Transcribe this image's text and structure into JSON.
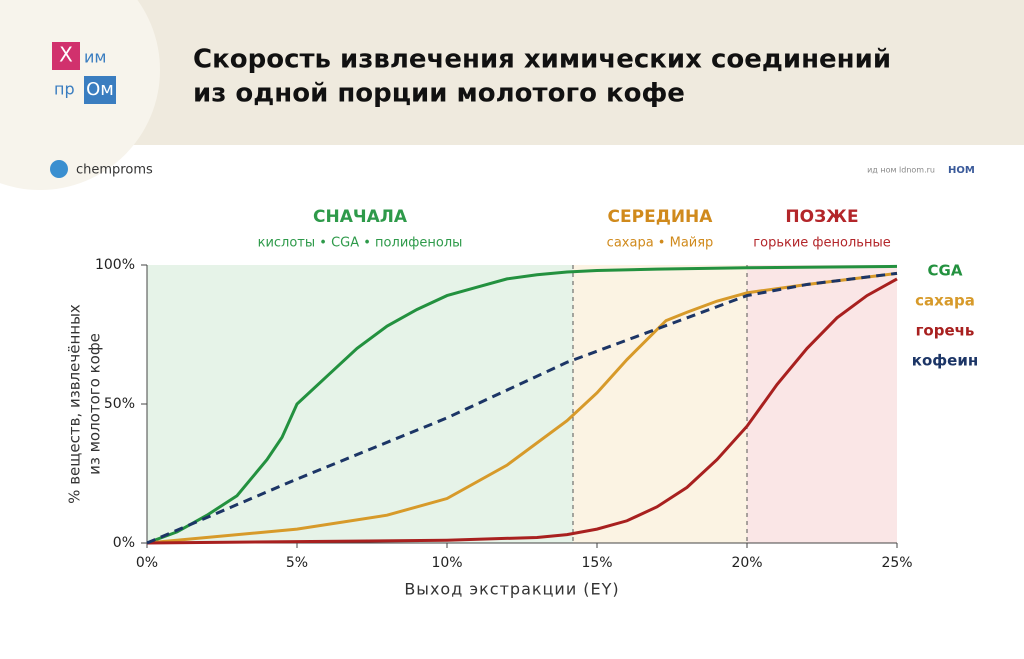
{
  "header": {
    "logo": [
      "Х",
      "им",
      "пр",
      "Ом"
    ],
    "title_lines": [
      "Скорость извлечения химических соединений",
      "из одной порции молотого кофе"
    ],
    "channel": "chemproms",
    "source": "ид ном ldnom.ru",
    "brand": "НОМ"
  },
  "chart_data": {
    "type": "line",
    "ylabel_lines": [
      "% веществ, извлечённых",
      "из молотого кофе"
    ],
    "xlabel": "Выход экстракции (EY)",
    "xlim": [
      0,
      25
    ],
    "ylim": [
      0,
      100
    ],
    "xticks": [
      {
        "value": 0,
        "label": "0%"
      },
      {
        "value": 5,
        "label": "5%"
      },
      {
        "value": 10,
        "label": "10%"
      },
      {
        "value": 15,
        "label": "15%"
      },
      {
        "value": 20,
        "label": "20%"
      },
      {
        "value": 25,
        "label": "25%"
      }
    ],
    "yticks": [
      {
        "value": 0,
        "label": "0%"
      },
      {
        "value": 50,
        "label": "50%"
      },
      {
        "value": 100,
        "label": "100%"
      }
    ],
    "regions": [
      {
        "name": "СНАЧАЛА",
        "items": "кислоты • CGA • полифенолы",
        "from": 0,
        "to": 14.2,
        "color": "#2e9a4a",
        "fill": "#e6f3e8"
      },
      {
        "name": "СЕРЕДИНА",
        "items": "сахара • Майяр",
        "from": 14.2,
        "to": 20,
        "color": "#d08a1c",
        "fill": "#fbf3e3"
      },
      {
        "name": "ПОЗЖЕ",
        "items": "горькие фенольные",
        "from": 20,
        "to": 25,
        "color": "#b3262a",
        "fill": "#fae6e6"
      }
    ],
    "series": [
      {
        "name": "CGA",
        "color": "#23913f",
        "dashed": false,
        "x": [
          0,
          1,
          2,
          3,
          4,
          4.5,
          5,
          6,
          7,
          8,
          9,
          10,
          11,
          12,
          13,
          14,
          15,
          17,
          20,
          25
        ],
        "values": [
          0,
          4,
          10,
          17,
          30,
          38,
          50,
          60,
          70,
          78,
          84,
          89,
          92,
          95,
          96.5,
          97.5,
          98,
          98.5,
          99,
          99.5
        ]
      },
      {
        "name": "сахара",
        "color": "#d79a2a",
        "dashed": false,
        "x": [
          0,
          5,
          8,
          10,
          12,
          14,
          15,
          16,
          17.3,
          18,
          19,
          20,
          22,
          25
        ],
        "values": [
          0,
          5,
          10,
          16,
          28,
          44,
          54,
          66,
          80,
          83,
          87,
          90,
          93,
          97
        ]
      },
      {
        "name": "горечь",
        "color": "#a8201f",
        "dashed": false,
        "x": [
          0,
          5,
          10,
          13,
          14,
          15,
          16,
          17,
          18,
          19,
          20,
          21,
          22,
          23,
          24,
          25
        ],
        "values": [
          0,
          0.5,
          1,
          2,
          3,
          5,
          8,
          13,
          20,
          30,
          42,
          57,
          70,
          81,
          89,
          95
        ]
      },
      {
        "name": "кофеин",
        "color": "#1c3566",
        "dashed": true,
        "x": [
          0,
          5,
          10,
          14,
          15,
          17,
          20,
          22,
          25
        ],
        "values": [
          0,
          23,
          45,
          65,
          69,
          77,
          89,
          93,
          97
        ]
      }
    ]
  }
}
